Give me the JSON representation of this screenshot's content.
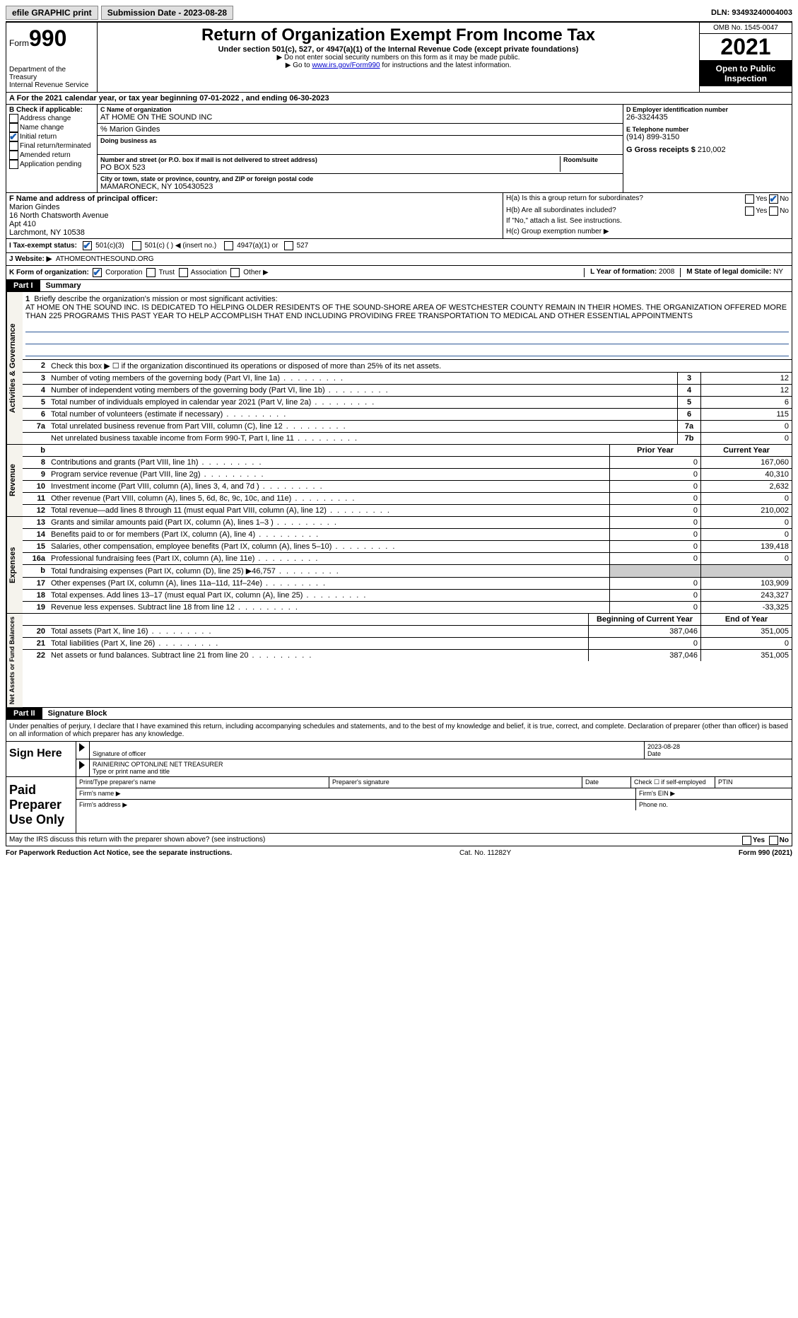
{
  "topbar": {
    "efile": "efile GRAPHIC print",
    "submission": "Submission Date - 2023-08-28",
    "dln": "DLN: 93493240004003"
  },
  "header": {
    "form_label": "Form",
    "form_num": "990",
    "dept": "Department of the Treasury",
    "irs": "Internal Revenue Service",
    "title": "Return of Organization Exempt From Income Tax",
    "subtitle": "Under section 501(c), 527, or 4947(a)(1) of the Internal Revenue Code (except private foundations)",
    "instr1": "▶ Do not enter social security numbers on this form as it may be made public.",
    "instr2_pre": "▶ Go to ",
    "instr2_link": "www.irs.gov/Form990",
    "instr2_post": " for instructions and the latest information.",
    "omb": "OMB No. 1545-0047",
    "year": "2021",
    "open": "Open to Public Inspection"
  },
  "row_a": "A For the 2021 calendar year, or tax year beginning 07-01-2022    , and ending 06-30-2023",
  "col_b": {
    "label": "B Check if applicable:",
    "opts": [
      "Address change",
      "Name change",
      "Initial return",
      "Final return/terminated",
      "Amended return",
      "Application pending"
    ],
    "checked_idx": 2
  },
  "col_c": {
    "name_label": "C Name of organization",
    "name": "AT HOME ON THE SOUND INC",
    "care_of": "% Marion Gindes",
    "dba_label": "Doing business as",
    "addr_label": "Number and street (or P.O. box if mail is not delivered to street address)",
    "room_label": "Room/suite",
    "addr": "PO BOX 523",
    "city_label": "City or town, state or province, country, and ZIP or foreign postal code",
    "city": "MAMARONECK, NY  105430523"
  },
  "col_d": {
    "ein_label": "D Employer identification number",
    "ein": "26-3324435",
    "phone_label": "E Telephone number",
    "phone": "(914) 899-3150",
    "gross_label": "G Gross receipts $",
    "gross": "210,002"
  },
  "row_f": {
    "label": "F  Name and address of principal officer:",
    "name": "Marion Gindes",
    "addr1": "16 North Chatsworth Avenue",
    "addr2": "Apt 410",
    "city": "Larchmont, NY  10538"
  },
  "row_h": {
    "ha": "H(a)  Is this a group return for subordinates?",
    "hb": "H(b)  Are all subordinates included?",
    "hb_note": "If \"No,\" attach a list. See instructions.",
    "hc": "H(c)  Group exemption number ▶",
    "yes": "Yes",
    "no": "No"
  },
  "row_i": {
    "label": "I   Tax-exempt status:",
    "opt1": "501(c)(3)",
    "opt2": "501(c) (  ) ◀ (insert no.)",
    "opt3": "4947(a)(1) or",
    "opt4": "527"
  },
  "row_j": {
    "label": "J   Website: ▶",
    "val": "ATHOMEONTHESOUND.ORG"
  },
  "row_k": {
    "label": "K Form of organization:",
    "opts": [
      "Corporation",
      "Trust",
      "Association",
      "Other ▶"
    ],
    "l_label": "L Year of formation:",
    "l_val": "2008",
    "m_label": "M State of legal domicile:",
    "m_val": "NY"
  },
  "parts": {
    "p1": "Part I",
    "p1_title": "Summary",
    "p2": "Part II",
    "p2_title": "Signature Block"
  },
  "sections": {
    "gov": "Activities & Governance",
    "rev": "Revenue",
    "exp": "Expenses",
    "net": "Net Assets or Fund Balances"
  },
  "mission": {
    "label": "Briefly describe the organization's mission or most significant activities:",
    "text": "AT HOME ON THE SOUND INC. IS DEDICATED TO HELPING OLDER RESIDENTS OF THE SOUND-SHORE AREA OF WESTCHESTER COUNTY REMAIN IN THEIR HOMES. THE ORGANIZATION OFFERED MORE THAN 225 PROGRAMS THIS PAST YEAR TO HELP ACCOMPLISH THAT END INCLUDING PROVIDING FREE TRANSPORTATION TO MEDICAL AND OTHER ESSENTIAL APPOINTMENTS"
  },
  "gov_lines": {
    "l2": "Check this box ▶ ☐  if the organization discontinued its operations or disposed of more than 25% of its net assets.",
    "l3": "Number of voting members of the governing body (Part VI, line 1a)",
    "l4": "Number of independent voting members of the governing body (Part VI, line 1b)",
    "l5": "Total number of individuals employed in calendar year 2021 (Part V, line 2a)",
    "l6": "Total number of volunteers (estimate if necessary)",
    "l7a": "Total unrelated business revenue from Part VIII, column (C), line 12",
    "l7b": "Net unrelated business taxable income from Form 990-T, Part I, line 11",
    "v3": "12",
    "v4": "12",
    "v5": "6",
    "v6": "115",
    "v7a": "0",
    "v7b": "0"
  },
  "col_headers": {
    "prior": "Prior Year",
    "current": "Current Year",
    "begin": "Beginning of Current Year",
    "end": "End of Year"
  },
  "rev_lines": [
    {
      "n": "8",
      "t": "Contributions and grants (Part VIII, line 1h)",
      "p": "0",
      "c": "167,060"
    },
    {
      "n": "9",
      "t": "Program service revenue (Part VIII, line 2g)",
      "p": "0",
      "c": "40,310"
    },
    {
      "n": "10",
      "t": "Investment income (Part VIII, column (A), lines 3, 4, and 7d )",
      "p": "0",
      "c": "2,632"
    },
    {
      "n": "11",
      "t": "Other revenue (Part VIII, column (A), lines 5, 6d, 8c, 9c, 10c, and 11e)",
      "p": "0",
      "c": "0"
    },
    {
      "n": "12",
      "t": "Total revenue—add lines 8 through 11 (must equal Part VIII, column (A), line 12)",
      "p": "0",
      "c": "210,002"
    }
  ],
  "exp_lines": [
    {
      "n": "13",
      "t": "Grants and similar amounts paid (Part IX, column (A), lines 1–3 )",
      "p": "0",
      "c": "0"
    },
    {
      "n": "14",
      "t": "Benefits paid to or for members (Part IX, column (A), line 4)",
      "p": "0",
      "c": "0"
    },
    {
      "n": "15",
      "t": "Salaries, other compensation, employee benefits (Part IX, column (A), lines 5–10)",
      "p": "0",
      "c": "139,418"
    },
    {
      "n": "16a",
      "t": "Professional fundraising fees (Part IX, column (A), line 11e)",
      "p": "0",
      "c": "0"
    },
    {
      "n": "b",
      "t": "Total fundraising expenses (Part IX, column (D), line 25) ▶46,757",
      "p": "",
      "c": "",
      "shaded": true
    },
    {
      "n": "17",
      "t": "Other expenses (Part IX, column (A), lines 11a–11d, 11f–24e)",
      "p": "0",
      "c": "103,909"
    },
    {
      "n": "18",
      "t": "Total expenses. Add lines 13–17 (must equal Part IX, column (A), line 25)",
      "p": "0",
      "c": "243,327"
    },
    {
      "n": "19",
      "t": "Revenue less expenses. Subtract line 18 from line 12",
      "p": "0",
      "c": "-33,325"
    }
  ],
  "net_lines": [
    {
      "n": "20",
      "t": "Total assets (Part X, line 16)",
      "p": "387,046",
      "c": "351,005"
    },
    {
      "n": "21",
      "t": "Total liabilities (Part X, line 26)",
      "p": "0",
      "c": "0"
    },
    {
      "n": "22",
      "t": "Net assets or fund balances. Subtract line 21 from line 20",
      "p": "387,046",
      "c": "351,005"
    }
  ],
  "sig": {
    "intro": "Under penalties of perjury, I declare that I have examined this return, including accompanying schedules and statements, and to the best of my knowledge and belief, it is true, correct, and complete. Declaration of preparer (other than officer) is based on all information of which preparer has any knowledge.",
    "sign_here": "Sign Here",
    "sig_officer": "Signature of officer",
    "date": "Date",
    "date_val": "2023-08-28",
    "name_title": "RAINIERINC OPTONLINE NET TREASURER",
    "name_title_label": "Type or print name and title",
    "paid": "Paid Preparer Use Only",
    "prep_name": "Print/Type preparer's name",
    "prep_sig": "Preparer's signature",
    "prep_date": "Date",
    "check_self": "Check ☐ if self-employed",
    "ptin": "PTIN",
    "firm_name": "Firm's name    ▶",
    "firm_ein": "Firm's EIN ▶",
    "firm_addr": "Firm's address ▶",
    "phone": "Phone no.",
    "may_irs": "May the IRS discuss this return with the preparer shown above? (see instructions)"
  },
  "footer": {
    "left": "For Paperwork Reduction Act Notice, see the separate instructions.",
    "mid": "Cat. No. 11282Y",
    "right": "Form 990 (2021)"
  }
}
